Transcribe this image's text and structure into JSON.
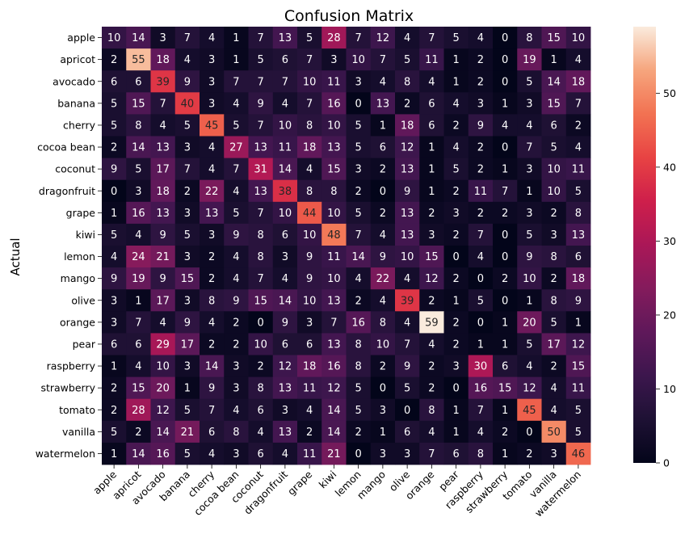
{
  "chart_data": {
    "type": "heatmap",
    "title": "Confusion Matrix",
    "xlabel": "",
    "ylabel": "Actual",
    "categories": [
      "apple",
      "apricot",
      "avocado",
      "banana",
      "cherry",
      "cocoa bean",
      "coconut",
      "dragonfruit",
      "grape",
      "kiwi",
      "lemon",
      "mango",
      "olive",
      "orange",
      "pear",
      "raspberry",
      "strawberry",
      "tomato",
      "vanilla",
      "watermelon"
    ],
    "matrix": [
      [
        10,
        14,
        3,
        7,
        4,
        1,
        7,
        13,
        5,
        28,
        7,
        12,
        4,
        7,
        5,
        4,
        0,
        8,
        15,
        10
      ],
      [
        2,
        55,
        18,
        4,
        3,
        1,
        5,
        6,
        7,
        3,
        10,
        7,
        5,
        11,
        1,
        2,
        0,
        19,
        1,
        4
      ],
      [
        6,
        6,
        39,
        9,
        3,
        7,
        7,
        7,
        10,
        11,
        3,
        4,
        8,
        4,
        1,
        2,
        0,
        5,
        14,
        18
      ],
      [
        5,
        15,
        7,
        40,
        3,
        4,
        9,
        4,
        7,
        16,
        0,
        13,
        2,
        6,
        4,
        3,
        1,
        3,
        15,
        7
      ],
      [
        5,
        8,
        4,
        5,
        45,
        5,
        7,
        10,
        8,
        10,
        5,
        1,
        18,
        6,
        2,
        9,
        4,
        4,
        6,
        2
      ],
      [
        2,
        14,
        13,
        3,
        4,
        27,
        13,
        11,
        18,
        13,
        5,
        6,
        12,
        1,
        4,
        2,
        0,
        7,
        5,
        4
      ],
      [
        9,
        5,
        17,
        7,
        4,
        7,
        31,
        14,
        4,
        15,
        3,
        2,
        13,
        1,
        5,
        2,
        1,
        3,
        10,
        11
      ],
      [
        0,
        3,
        18,
        2,
        22,
        4,
        13,
        38,
        8,
        8,
        2,
        0,
        9,
        1,
        2,
        11,
        7,
        1,
        10,
        5
      ],
      [
        1,
        16,
        13,
        3,
        13,
        5,
        7,
        10,
        44,
        10,
        5,
        2,
        13,
        2,
        3,
        2,
        2,
        3,
        2,
        8
      ],
      [
        5,
        4,
        9,
        5,
        3,
        9,
        8,
        6,
        10,
        48,
        7,
        4,
        13,
        3,
        2,
        7,
        0,
        5,
        3,
        13
      ],
      [
        4,
        24,
        21,
        3,
        2,
        4,
        8,
        3,
        9,
        11,
        14,
        9,
        10,
        15,
        0,
        4,
        0,
        9,
        8,
        6
      ],
      [
        9,
        19,
        9,
        15,
        2,
        4,
        7,
        4,
        9,
        10,
        4,
        22,
        4,
        12,
        2,
        0,
        2,
        10,
        2,
        18
      ],
      [
        3,
        1,
        17,
        3,
        8,
        9,
        15,
        14,
        10,
        13,
        2,
        4,
        39,
        2,
        1,
        5,
        0,
        1,
        8,
        9
      ],
      [
        3,
        7,
        4,
        9,
        4,
        2,
        0,
        9,
        3,
        7,
        16,
        8,
        4,
        59,
        2,
        0,
        1,
        20,
        5,
        1
      ],
      [
        6,
        6,
        29,
        17,
        2,
        2,
        10,
        6,
        6,
        13,
        8,
        10,
        7,
        4,
        2,
        1,
        1,
        5,
        17,
        12
      ],
      [
        1,
        4,
        10,
        3,
        14,
        3,
        2,
        12,
        18,
        16,
        8,
        2,
        9,
        2,
        3,
        30,
        6,
        4,
        2,
        15
      ],
      [
        2,
        15,
        20,
        1,
        9,
        3,
        8,
        13,
        11,
        12,
        5,
        0,
        5,
        2,
        0,
        16,
        15,
        12,
        4,
        11
      ],
      [
        2,
        28,
        12,
        5,
        7,
        4,
        6,
        3,
        4,
        14,
        5,
        3,
        0,
        8,
        1,
        7,
        1,
        45,
        4,
        5
      ],
      [
        5,
        2,
        14,
        21,
        6,
        8,
        4,
        13,
        2,
        14,
        2,
        1,
        6,
        4,
        1,
        4,
        2,
        0,
        50,
        5
      ],
      [
        1,
        14,
        16,
        5,
        4,
        3,
        6,
        4,
        11,
        21,
        0,
        3,
        3,
        7,
        6,
        8,
        1,
        2,
        3,
        46
      ]
    ],
    "colorbar": {
      "min": 0,
      "max": 59,
      "ticks": [
        0,
        10,
        20,
        30,
        40,
        50
      ],
      "colormap": "rocket"
    },
    "grid": false
  }
}
